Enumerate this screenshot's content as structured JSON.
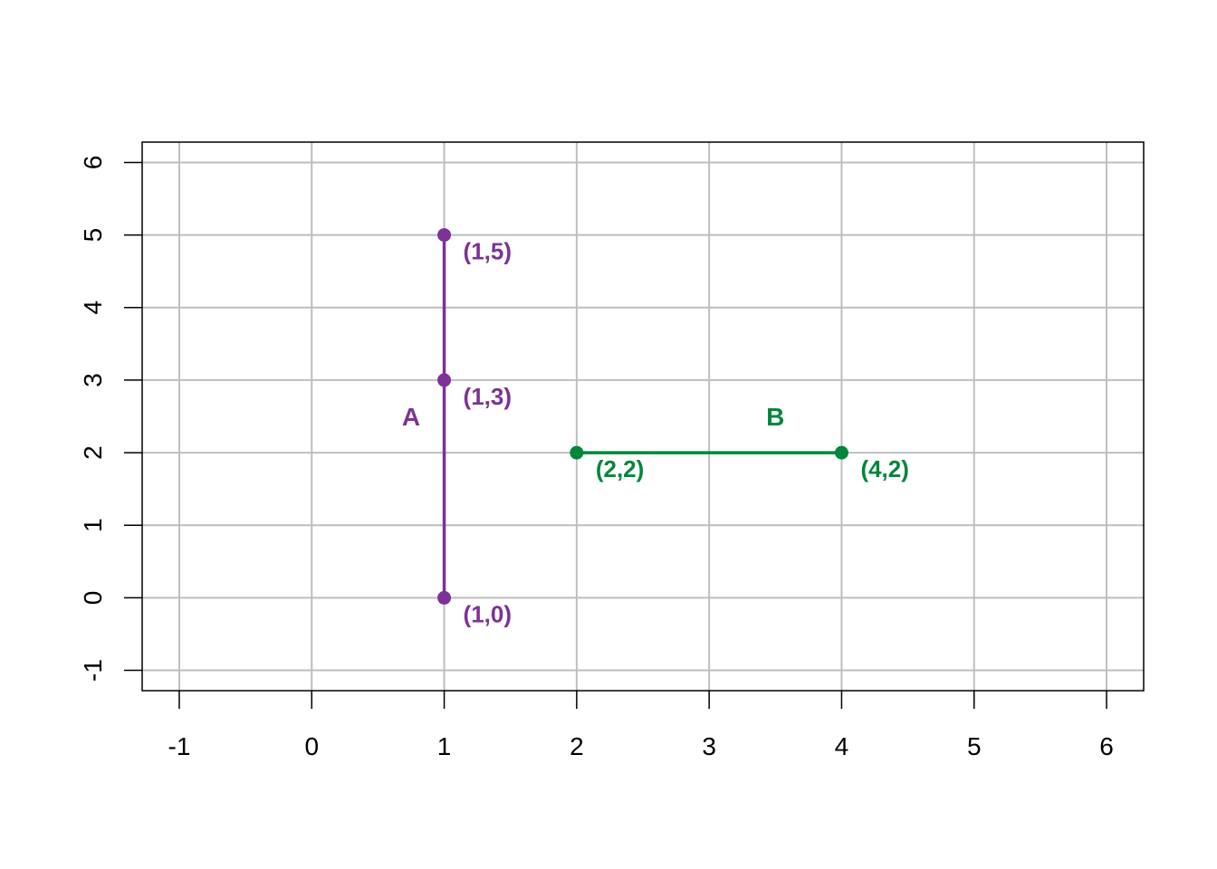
{
  "chart_data": {
    "type": "line",
    "title": "",
    "xlabel": "",
    "ylabel": "",
    "xlim": [
      -1.28,
      6.28
    ],
    "ylim": [
      -1.28,
      6.28
    ],
    "x_ticks": [
      -1,
      0,
      1,
      2,
      3,
      4,
      5,
      6
    ],
    "y_ticks": [
      -1,
      0,
      1,
      2,
      3,
      4,
      5,
      6
    ],
    "grid": true,
    "series": [
      {
        "name": "A",
        "color": "#7D3295",
        "points": [
          {
            "x": 1,
            "y": 5,
            "label": "(1,5)"
          },
          {
            "x": 1,
            "y": 3,
            "label": "(1,3)"
          },
          {
            "x": 1,
            "y": 0,
            "label": "(1,0)"
          }
        ],
        "series_label_at": {
          "x": 0.75,
          "y": 2.5
        }
      },
      {
        "name": "B",
        "color": "#00873A",
        "points": [
          {
            "x": 2,
            "y": 2,
            "label": "(2,2)"
          },
          {
            "x": 4,
            "y": 2,
            "label": "(4,2)"
          }
        ],
        "series_label_at": {
          "x": 3.5,
          "y": 2.5
        }
      }
    ]
  }
}
